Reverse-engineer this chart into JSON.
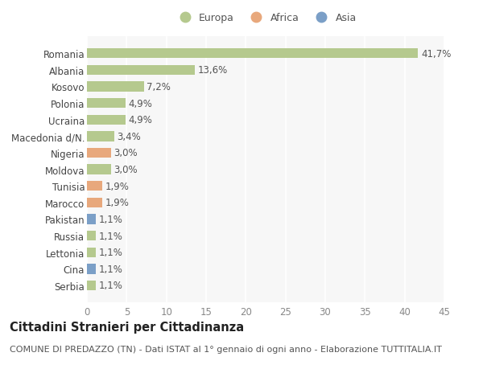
{
  "countries": [
    "Serbia",
    "Cina",
    "Lettonia",
    "Russia",
    "Pakistan",
    "Marocco",
    "Tunisia",
    "Moldova",
    "Nigeria",
    "Macedonia d/N.",
    "Ucraina",
    "Polonia",
    "Kosovo",
    "Albania",
    "Romania"
  ],
  "values": [
    1.1,
    1.1,
    1.1,
    1.1,
    1.1,
    1.9,
    1.9,
    3.0,
    3.0,
    3.4,
    4.9,
    4.9,
    7.2,
    13.6,
    41.7
  ],
  "labels": [
    "1,1%",
    "1,1%",
    "1,1%",
    "1,1%",
    "1,1%",
    "1,9%",
    "1,9%",
    "3,0%",
    "3,0%",
    "3,4%",
    "4,9%",
    "4,9%",
    "7,2%",
    "13,6%",
    "41,7%"
  ],
  "continents": [
    "Europa",
    "Asia",
    "Europa",
    "Europa",
    "Asia",
    "Africa",
    "Africa",
    "Europa",
    "Africa",
    "Europa",
    "Europa",
    "Europa",
    "Europa",
    "Europa",
    "Europa"
  ],
  "colors": {
    "Europa": "#b5c98e",
    "Africa": "#e8a87c",
    "Asia": "#7b9fc7"
  },
  "title": "Cittadini Stranieri per Cittadinanza",
  "subtitle": "COMUNE DI PREDAZZO (TN) - Dati ISTAT al 1° gennaio di ogni anno - Elaborazione TUTTITALIA.IT",
  "xlim": [
    0,
    45
  ],
  "xticks": [
    0,
    5,
    10,
    15,
    20,
    25,
    30,
    35,
    40,
    45
  ],
  "bg_color": "#ffffff",
  "plot_bg_color": "#f7f7f7",
  "grid_color": "#ffffff",
  "bar_height": 0.6,
  "label_fontsize": 8.5,
  "tick_fontsize": 8.5,
  "title_fontsize": 10.5,
  "subtitle_fontsize": 8
}
